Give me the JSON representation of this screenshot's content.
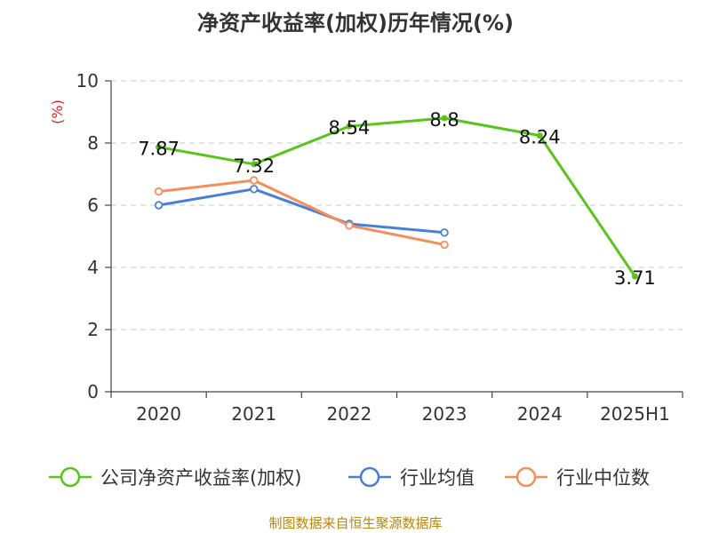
{
  "chart_data": {
    "type": "line",
    "title": "净资产收益率(加权)历年情况(%)",
    "ylabel": "(%)",
    "categories": [
      "2020",
      "2021",
      "2022",
      "2023",
      "2024",
      "2025H1"
    ],
    "ylim": [
      0,
      10
    ],
    "yticks": [
      "0",
      "2",
      "4",
      "6",
      "8",
      "10"
    ],
    "grid": true,
    "legend_position": "bottom",
    "series": [
      {
        "name": "公司净资产收益率(加权)",
        "color": "#5ac41e",
        "values": [
          7.87,
          7.32,
          8.54,
          8.8,
          8.24,
          3.71
        ],
        "labels": [
          "7.87",
          "7.32",
          "8.54",
          "8.8",
          "8.24",
          "3.71"
        ]
      },
      {
        "name": "行业均值",
        "color": "#4a7fd8",
        "values": [
          6.0,
          6.52,
          5.4,
          5.12,
          null,
          null
        ]
      },
      {
        "name": "行业中位数",
        "color": "#f58e5a",
        "values": [
          6.44,
          6.8,
          5.35,
          4.73,
          null,
          null
        ]
      }
    ],
    "source": "制图数据来自恒生聚源数据库"
  }
}
